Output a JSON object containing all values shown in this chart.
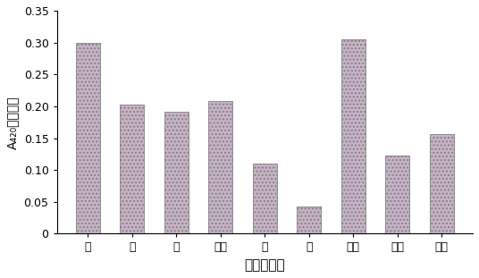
{
  "categories": [
    "碱",
    "酸",
    "中",
    "木瓜",
    "诺",
    "胃",
    "风味",
    "锐膜",
    "奥膜"
  ],
  "values": [
    0.3,
    0.202,
    0.192,
    0.208,
    0.11,
    0.043,
    0.305,
    0.122,
    0.156
  ],
  "bar_facecolor": "#c8b4c8",
  "bar_hatch": "....",
  "bar_edgecolor": "#808080",
  "title": "",
  "xlabel": "蛋白酮种类",
  "ylabel": "A₄₂₀处吸光値",
  "ylim": [
    0,
    0.35
  ],
  "yticks": [
    0,
    0.05,
    0.1,
    0.15,
    0.2,
    0.25,
    0.3,
    0.35
  ],
  "ytick_labels": [
    "0",
    "0.05",
    "0.10",
    "0.15",
    "0.20",
    "0.25",
    "0.30",
    "0.35"
  ],
  "xlabel_fontsize": 11,
  "ylabel_fontsize": 10,
  "tick_fontsize": 9,
  "bar_width": 0.55
}
